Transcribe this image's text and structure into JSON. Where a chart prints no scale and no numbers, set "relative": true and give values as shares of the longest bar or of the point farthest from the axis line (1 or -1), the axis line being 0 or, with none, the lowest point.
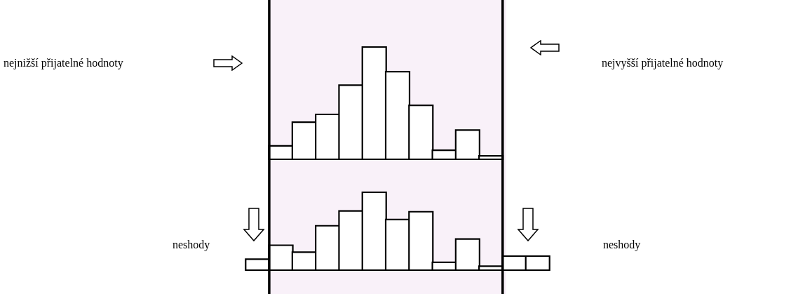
{
  "chart_data": [
    {
      "type": "bar",
      "relative": true,
      "color": "#ffffff",
      "categories": [
        null,
        null,
        null,
        null,
        null,
        null,
        null,
        null,
        null,
        null
      ],
      "values": [
        0.12,
        0.33,
        0.4,
        0.66,
        1,
        0.78,
        0.48,
        0.08,
        0.26,
        0.03
      ],
      "annotations": [
        "nejnižší přijatelné hodnoty",
        "nejvyšší přijatelné hodnoty"
      ]
    },
    {
      "type": "bar",
      "relative": true,
      "color": "#ffffff",
      "categories": [
        null,
        null,
        null,
        null,
        null,
        null,
        null,
        null,
        null,
        null,
        null,
        null,
        null
      ],
      "values": [
        0.14,
        0.32,
        0.23,
        0.57,
        0.76,
        1,
        0.65,
        0.75,
        0.1,
        0.4,
        0.05,
        0.18,
        0.18
      ],
      "annotations": [
        "neshody",
        "neshody"
      ]
    }
  ]
}
